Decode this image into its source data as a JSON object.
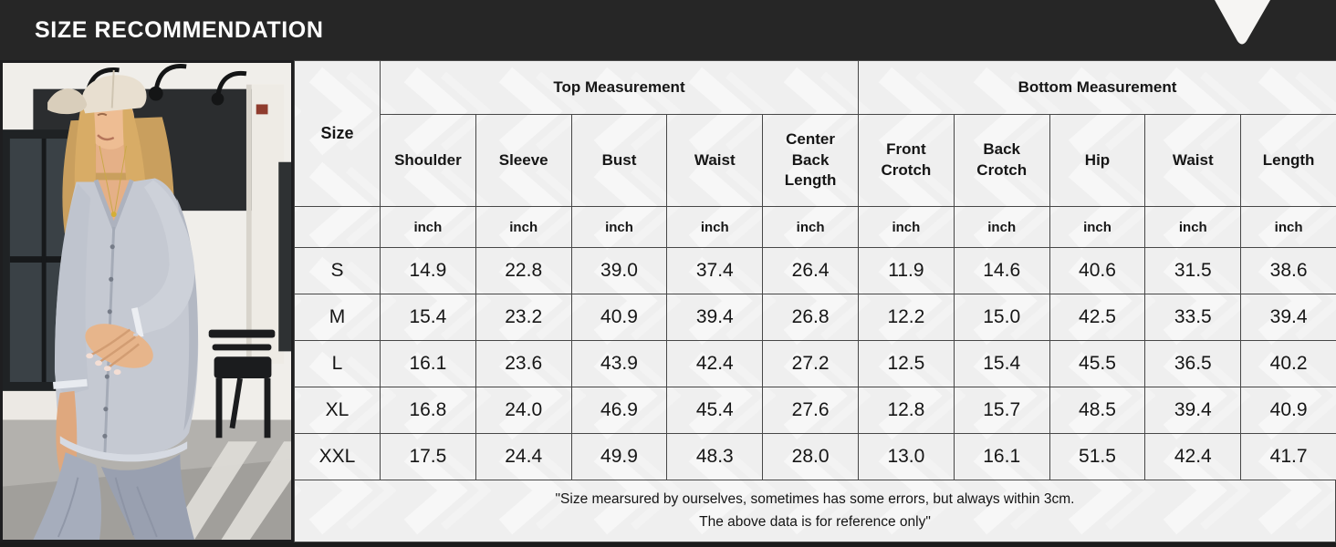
{
  "header": {
    "title": "SIZE RECOMMENDATION",
    "triangle_icon": "down-triangle-icon"
  },
  "colors": {
    "topbar_bg": "#262626",
    "table_bg": "#efefef",
    "table_border": "#474747",
    "triangle": "#f6f5f3",
    "watermark": "rgba(255,255,255,0.5)",
    "text": "#161616"
  },
  "table": {
    "size_header": "Size",
    "group_top": "Top Measurement",
    "group_bottom": "Bottom Measurement",
    "columns": [
      "Shoulder",
      "Sleeve",
      "Bust",
      "Waist",
      "Center Back Length",
      "Front Crotch",
      "Back Crotch",
      "Hip",
      "Waist",
      "Length"
    ],
    "unit": "inch",
    "rows": [
      [
        "S",
        "14.9",
        "22.8",
        "39.0",
        "37.4",
        "26.4",
        "11.9",
        "14.6",
        "40.6",
        "31.5",
        "38.6"
      ],
      [
        "M",
        "15.4",
        "23.2",
        "40.9",
        "39.4",
        "26.8",
        "12.2",
        "15.0",
        "42.5",
        "33.5",
        "39.4"
      ],
      [
        "L",
        "16.1",
        "23.6",
        "43.9",
        "42.4",
        "27.2",
        "12.5",
        "15.4",
        "45.5",
        "36.5",
        "40.2"
      ],
      [
        "XL",
        "16.8",
        "24.0",
        "46.9",
        "45.4",
        "27.6",
        "12.8",
        "15.7",
        "48.5",
        "39.4",
        "40.9"
      ],
      [
        "XXL",
        "17.5",
        "24.4",
        "49.9",
        "48.3",
        "28.0",
        "13.0",
        "16.1",
        "51.5",
        "42.4",
        "41.7"
      ]
    ]
  },
  "footnote": {
    "line1": "\"Size mearsured by ourselves, sometimes has some errors, but always within 3cm.",
    "line2": "The above data is for reference only\""
  },
  "chart_data": {
    "type": "table",
    "title": "SIZE RECOMMENDATION",
    "column_groups": [
      {
        "label": "Size",
        "span": 1
      },
      {
        "label": "Top Measurement",
        "span": 5
      },
      {
        "label": "Bottom Measurement",
        "span": 5
      }
    ],
    "columns": [
      "Size",
      "Shoulder",
      "Sleeve",
      "Bust",
      "Waist",
      "Center Back Length",
      "Front Crotch",
      "Back Crotch",
      "Hip",
      "Waist",
      "Length"
    ],
    "unit": "inch",
    "rows": [
      [
        "S",
        14.9,
        22.8,
        39.0,
        37.4,
        26.4,
        11.9,
        14.6,
        40.6,
        31.5,
        38.6
      ],
      [
        "M",
        15.4,
        23.2,
        40.9,
        39.4,
        26.8,
        12.2,
        15.0,
        42.5,
        33.5,
        39.4
      ],
      [
        "L",
        16.1,
        23.6,
        43.9,
        42.4,
        27.2,
        12.5,
        15.4,
        45.5,
        36.5,
        40.2
      ],
      [
        "XL",
        16.8,
        24.0,
        46.9,
        45.4,
        27.6,
        12.8,
        15.7,
        48.5,
        39.4,
        40.9
      ],
      [
        "XXL",
        17.5,
        24.4,
        49.9,
        48.3,
        28.0,
        13.0,
        16.1,
        51.5,
        42.4,
        41.7
      ]
    ],
    "footnote": "\"Size mearsured by ourselves, sometimes has some errors, but always within 3cm. The above data is for reference only\""
  }
}
